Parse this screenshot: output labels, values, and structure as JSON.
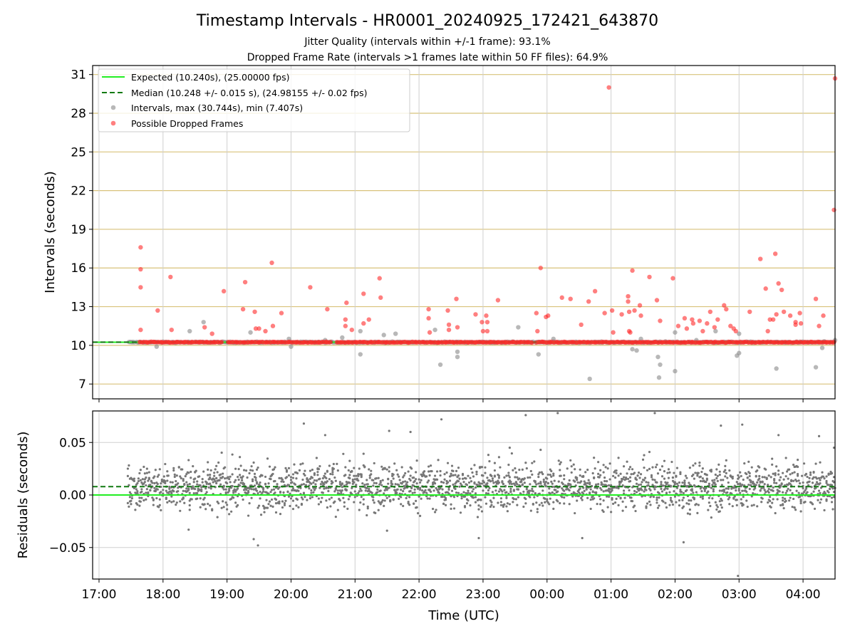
{
  "chart_data": [
    {
      "type": "scatter",
      "panel": "intervals",
      "title": "Timestamp Intervals - HR0001_20240925_172421_643870",
      "subtitle_lines": [
        "Jitter Quality (intervals within +/-1 frame): 93.1%",
        "Dropped Frame Rate (intervals >1 frames late within 50 FF files): 64.9%"
      ],
      "xlabel": "Time (UTC)",
      "ylabel": "Intervals (seconds)",
      "x_range": [
        "16:54",
        "04:30"
      ],
      "x_ticks": [
        "17:00",
        "18:00",
        "19:00",
        "20:00",
        "21:00",
        "22:00",
        "23:00",
        "00:00",
        "01:00",
        "02:00",
        "03:00",
        "04:00"
      ],
      "ylim": [
        5.85,
        31.7
      ],
      "y_ticks": [
        7,
        10,
        13,
        16,
        19,
        22,
        25,
        28,
        31
      ],
      "grid": "on",
      "legend_position": "top-left",
      "expected_line": {
        "label": "Expected (10.240s), (25.00000 fps)",
        "y": 10.24,
        "color": "#22ee22"
      },
      "median_line": {
        "label": "Median (10.248 +/- 0.015 s), (24.98155 +/- 0.02 fps)",
        "y": 10.248,
        "color": "#117a11"
      },
      "series": [
        {
          "name": "Intervals, max (30.744s), min (7.407s)",
          "color": "#888888",
          "baseline": 10.24,
          "outliers": [
            [
              "17:54",
              9.9
            ],
            [
              "18:25",
              11.1
            ],
            [
              "18:38",
              11.8
            ],
            [
              "19:22",
              11.0
            ],
            [
              "19:58",
              10.5
            ],
            [
              "20:00",
              9.9
            ],
            [
              "20:32",
              10.4
            ],
            [
              "20:48",
              10.6
            ],
            [
              "21:05",
              9.3
            ],
            [
              "21:05",
              11.1
            ],
            [
              "21:27",
              10.8
            ],
            [
              "21:38",
              10.9
            ],
            [
              "22:15",
              11.2
            ],
            [
              "22:20",
              8.5
            ],
            [
              "22:36",
              9.1
            ],
            [
              "22:36",
              9.5
            ],
            [
              "23:33",
              11.4
            ],
            [
              "23:52",
              9.3
            ],
            [
              "00:06",
              10.5
            ],
            [
              "00:40",
              7.4
            ],
            [
              "01:20",
              9.7
            ],
            [
              "01:24",
              9.6
            ],
            [
              "01:28",
              10.5
            ],
            [
              "01:44",
              9.1
            ],
            [
              "01:45",
              7.5
            ],
            [
              "01:46",
              8.5
            ],
            [
              "01:51",
              10.3
            ],
            [
              "02:00",
              11.0
            ],
            [
              "02:00",
              8.0
            ],
            [
              "02:20",
              10.4
            ],
            [
              "02:38",
              11.1
            ],
            [
              "02:58",
              9.2
            ],
            [
              "03:00",
              9.4
            ],
            [
              "03:00",
              10.9
            ],
            [
              "03:35",
              8.2
            ],
            [
              "04:12",
              8.3
            ],
            [
              "04:18",
              9.8
            ],
            [
              "04:20",
              10.3
            ],
            [
              "04:30",
              10.4
            ]
          ]
        },
        {
          "name": "Possible Dropped Frames",
          "color": "#ff2a2a",
          "baseline": 10.24,
          "points": [
            [
              "17:39",
              17.6
            ],
            [
              "17:39",
              15.9
            ],
            [
              "17:39",
              14.5
            ],
            [
              "17:39",
              11.2
            ],
            [
              "17:55",
              12.7
            ],
            [
              "18:07",
              15.3
            ],
            [
              "18:08",
              11.2
            ],
            [
              "18:39",
              11.4
            ],
            [
              "18:46",
              10.9
            ],
            [
              "18:57",
              14.2
            ],
            [
              "19:15",
              12.8
            ],
            [
              "19:17",
              14.9
            ],
            [
              "19:26",
              12.6
            ],
            [
              "19:27",
              11.3
            ],
            [
              "19:30",
              11.3
            ],
            [
              "19:36",
              11.1
            ],
            [
              "19:42",
              16.4
            ],
            [
              "19:43",
              11.5
            ],
            [
              "19:51",
              12.5
            ],
            [
              "20:18",
              14.5
            ],
            [
              "20:34",
              12.8
            ],
            [
              "20:51",
              12.0
            ],
            [
              "20:51",
              11.5
            ],
            [
              "20:52",
              13.3
            ],
            [
              "20:57",
              11.2
            ],
            [
              "21:08",
              14.0
            ],
            [
              "21:08",
              11.7
            ],
            [
              "21:13",
              12.0
            ],
            [
              "21:23",
              15.2
            ],
            [
              "21:24",
              13.7
            ],
            [
              "22:09",
              12.8
            ],
            [
              "22:09",
              12.1
            ],
            [
              "22:10",
              11.0
            ],
            [
              "22:27",
              12.7
            ],
            [
              "22:28",
              11.6
            ],
            [
              "22:28",
              11.2
            ],
            [
              "22:35",
              13.6
            ],
            [
              "22:36",
              11.4
            ],
            [
              "22:53",
              12.4
            ],
            [
              "22:59",
              11.8
            ],
            [
              "23:00",
              11.1
            ],
            [
              "23:03",
              12.3
            ],
            [
              "23:04",
              11.8
            ],
            [
              "23:04",
              11.1
            ],
            [
              "23:14",
              13.5
            ],
            [
              "23:50",
              12.5
            ],
            [
              "23:51",
              11.1
            ],
            [
              "23:54",
              16.0
            ],
            [
              "23:59",
              12.2
            ],
            [
              "00:01",
              12.3
            ],
            [
              "00:14",
              13.7
            ],
            [
              "00:22",
              13.6
            ],
            [
              "00:32",
              11.6
            ],
            [
              "00:39",
              13.4
            ],
            [
              "00:45",
              14.2
            ],
            [
              "00:54",
              12.5
            ],
            [
              "00:58",
              30.0
            ],
            [
              "01:01",
              12.7
            ],
            [
              "01:02",
              11.0
            ],
            [
              "01:10",
              12.4
            ],
            [
              "01:16",
              13.8
            ],
            [
              "01:16",
              13.4
            ],
            [
              "01:17",
              12.6
            ],
            [
              "01:17",
              11.1
            ],
            [
              "01:18",
              11.0
            ],
            [
              "01:20",
              15.8
            ],
            [
              "01:22",
              12.7
            ],
            [
              "01:27",
              13.1
            ],
            [
              "01:28",
              12.3
            ],
            [
              "01:36",
              15.3
            ],
            [
              "01:43",
              13.5
            ],
            [
              "01:46",
              11.9
            ],
            [
              "01:58",
              15.2
            ],
            [
              "02:03",
              11.5
            ],
            [
              "02:09",
              12.1
            ],
            [
              "02:11",
              11.3
            ],
            [
              "02:16",
              12.0
            ],
            [
              "02:17",
              11.7
            ],
            [
              "02:23",
              11.9
            ],
            [
              "02:26",
              11.1
            ],
            [
              "02:30",
              11.7
            ],
            [
              "02:33",
              12.6
            ],
            [
              "02:37",
              11.4
            ],
            [
              "02:40",
              12.0
            ],
            [
              "02:46",
              13.1
            ],
            [
              "02:48",
              12.8
            ],
            [
              "02:52",
              11.5
            ],
            [
              "02:55",
              11.3
            ],
            [
              "02:57",
              11.1
            ],
            [
              "03:10",
              12.6
            ],
            [
              "03:20",
              16.7
            ],
            [
              "03:25",
              14.4
            ],
            [
              "03:27",
              11.1
            ],
            [
              "03:29",
              12.0
            ],
            [
              "03:32",
              12.0
            ],
            [
              "03:34",
              17.1
            ],
            [
              "03:35",
              12.4
            ],
            [
              "03:37",
              14.8
            ],
            [
              "03:40",
              14.3
            ],
            [
              "03:42",
              12.6
            ],
            [
              "03:48",
              12.3
            ],
            [
              "03:53",
              11.8
            ],
            [
              "03:53",
              11.6
            ],
            [
              "03:57",
              12.5
            ],
            [
              "03:58",
              11.7
            ],
            [
              "04:12",
              13.6
            ],
            [
              "04:15",
              11.5
            ],
            [
              "04:19",
              12.3
            ],
            [
              "04:29",
              20.5
            ],
            [
              "04:30",
              30.7
            ]
          ]
        }
      ]
    },
    {
      "type": "scatter",
      "panel": "residuals",
      "xlabel": "Time (UTC)",
      "ylabel": "Residuals (seconds)",
      "ylim": [
        -0.08,
        0.08
      ],
      "y_ticks": [
        0.05,
        0.0,
        -0.05
      ],
      "y_tick_labels": [
        "0.05",
        "0.00",
        "−0.05"
      ],
      "x_ticks": [
        "17:00",
        "18:00",
        "19:00",
        "20:00",
        "21:00",
        "22:00",
        "23:00",
        "00:00",
        "01:00",
        "02:00",
        "03:00",
        "04:00"
      ],
      "grid": "on",
      "zero_line": {
        "y": 0.0,
        "color": "#22ee22"
      },
      "median_line": {
        "y": 0.008,
        "color": "#117a11"
      },
      "series": [
        {
          "name": "",
          "color": "#777777",
          "time_span": [
            "17:27",
            "04:30"
          ],
          "center": 0.008,
          "spread": 0.011,
          "count": 2400,
          "outliers": [
            [
              "20:12",
              0.068
            ],
            [
              "20:32",
              0.057
            ],
            [
              "21:32",
              0.061
            ],
            [
              "21:52",
              0.06
            ],
            [
              "22:21",
              0.072
            ],
            [
              "23:40",
              0.076
            ],
            [
              "00:10",
              0.078
            ],
            [
              "01:41",
              0.078
            ],
            [
              "02:43",
              0.066
            ],
            [
              "03:03",
              0.067
            ],
            [
              "03:37",
              0.057
            ],
            [
              "04:15",
              0.056
            ],
            [
              "04:29",
              0.045
            ],
            [
              "23:25",
              0.045
            ],
            [
              "23:54",
              0.043
            ],
            [
              "19:25",
              -0.042
            ],
            [
              "19:29",
              -0.048
            ],
            [
              "22:56",
              -0.041
            ],
            [
              "00:33",
              -0.041
            ],
            [
              "02:08",
              -0.045
            ],
            [
              "02:59",
              -0.077
            ],
            [
              "18:24",
              -0.033
            ],
            [
              "21:30",
              -0.034
            ]
          ]
        }
      ]
    }
  ],
  "legend": {
    "items": [
      {
        "label": "Expected (10.240s), (25.00000 fps)",
        "kind": "line",
        "color": "#22ee22"
      },
      {
        "label": "Median (10.248 +/- 0.015 s), (24.98155 +/- 0.02 fps)",
        "kind": "dashed-line",
        "color": "#117a11"
      },
      {
        "label": "Intervals, max (30.744s), min (7.407s)",
        "kind": "marker",
        "color": "#888888"
      },
      {
        "label": "Possible Dropped Frames",
        "kind": "marker",
        "color": "#ff2a2a"
      }
    ]
  }
}
